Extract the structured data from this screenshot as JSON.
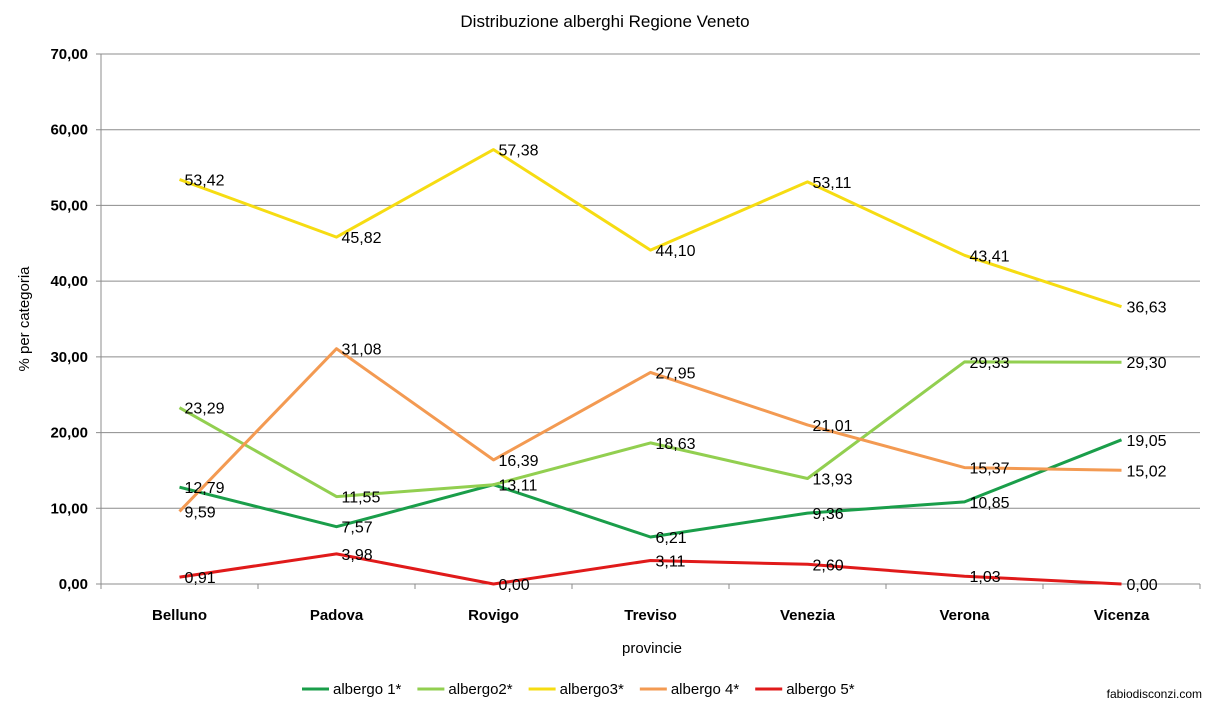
{
  "chart_data": {
    "type": "line",
    "title": "Distribuzione alberghi Regione Veneto",
    "xlabel": "provincie",
    "ylabel": "% per categoria",
    "categories": [
      "Belluno",
      "Padova",
      "Rovigo",
      "Treviso",
      "Venezia",
      "Verona",
      "Vicenza"
    ],
    "ylim": [
      0,
      70
    ],
    "yticks": [
      "0,00",
      "10,00",
      "20,00",
      "30,00",
      "40,00",
      "50,00",
      "60,00",
      "70,00"
    ],
    "grid": true,
    "legend_position": "bottom",
    "series": [
      {
        "name": "albergo 1*",
        "color": "#1a9e4a",
        "values": [
          12.79,
          7.57,
          13.11,
          6.21,
          9.36,
          10.85,
          19.05
        ],
        "labels": [
          "12,79",
          "7,57",
          "13,11",
          "6,21",
          "9,36",
          "10,85",
          "19,05"
        ]
      },
      {
        "name": "albergo2*",
        "color": "#92cf50",
        "values": [
          23.29,
          11.55,
          13.11,
          18.63,
          13.93,
          29.33,
          29.3
        ],
        "labels": [
          "23,29",
          "11,55",
          "",
          "18,63",
          "13,93",
          "29,33",
          "29,30"
        ]
      },
      {
        "name": "albergo3*",
        "color": "#f6dc12",
        "values": [
          53.42,
          45.82,
          57.38,
          44.1,
          53.11,
          43.41,
          36.63
        ],
        "labels": [
          "53,42",
          "45,82",
          "57,38",
          "44,10",
          "53,11",
          "43,41",
          "36,63"
        ]
      },
      {
        "name": "albergo 4*",
        "color": "#f39a52",
        "values": [
          9.59,
          31.08,
          16.39,
          27.95,
          21.01,
          15.37,
          15.02
        ],
        "labels": [
          "9,59",
          "31,08",
          "16,39",
          "27,95",
          "21,01",
          "15,37",
          "15,02"
        ]
      },
      {
        "name": "albergo 5*",
        "color": "#e01a1a",
        "values": [
          0.91,
          3.98,
          0.0,
          3.11,
          2.6,
          1.03,
          0.0
        ],
        "labels": [
          "0,91",
          "3,98",
          "0,00",
          "3,11",
          "2,60",
          "1,03",
          "0,00"
        ]
      }
    ]
  },
  "credit": "fabiodisconzi.com"
}
